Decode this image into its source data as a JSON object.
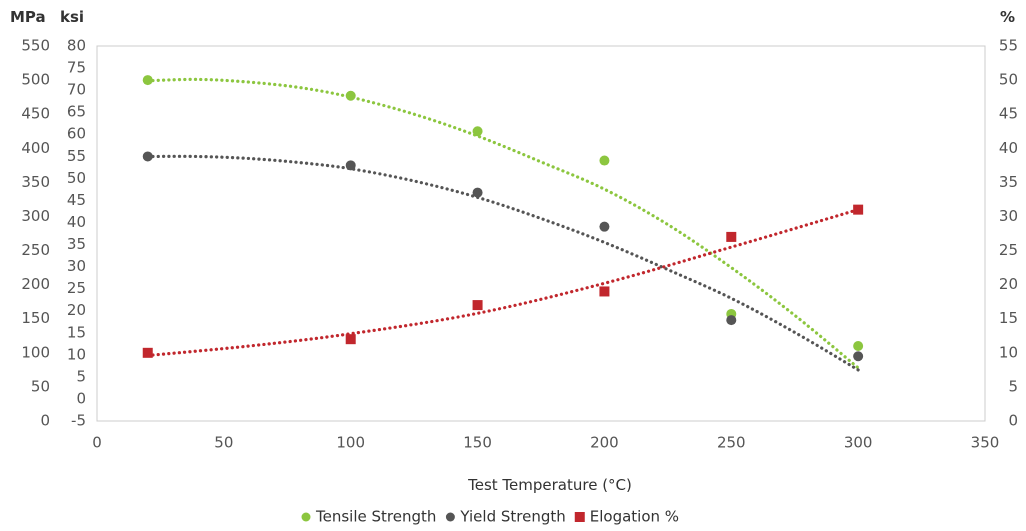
{
  "chart_data": {
    "type": "scatter",
    "title": "",
    "xlabel": "Test Temperature  (°C)",
    "x_ticks": [
      0,
      50,
      100,
      150,
      200,
      250,
      300,
      350
    ],
    "xlim": [
      0,
      350
    ],
    "y_left_mpa": {
      "unit": "MPa",
      "ticks": [
        0,
        50,
        100,
        150,
        200,
        250,
        300,
        350,
        400,
        450,
        500,
        550
      ],
      "ylim": [
        0,
        550
      ]
    },
    "y_left_ksi": {
      "unit": "ksi",
      "ticks": [
        -5,
        0,
        5,
        10,
        15,
        20,
        25,
        30,
        35,
        40,
        45,
        50,
        55,
        60,
        65,
        70,
        75,
        80
      ],
      "ylim": [
        -5,
        80
      ]
    },
    "y_right_percent": {
      "unit": "%",
      "ticks": [
        0,
        5,
        10,
        15,
        20,
        25,
        30,
        35,
        40,
        45,
        50,
        55
      ],
      "ylim": [
        0,
        55
      ]
    },
    "grid": false,
    "legend_position": "bottom",
    "series": [
      {
        "name": "Tensile Strength",
        "axis": "MPa",
        "marker": "circle",
        "color": "#8cc63f",
        "x": [
          20,
          100,
          150,
          200,
          250,
          300
        ],
        "y": [
          500,
          477,
          425,
          382,
          157,
          110
        ],
        "trend": [
          [
            20,
            499
          ],
          [
            40,
            501
          ],
          [
            60,
            497
          ],
          [
            80,
            489
          ],
          [
            100,
            475
          ],
          [
            125,
            450
          ],
          [
            150,
            418
          ],
          [
            175,
            380
          ],
          [
            200,
            340
          ],
          [
            225,
            288
          ],
          [
            250,
            225
          ],
          [
            275,
            155
          ],
          [
            300,
            78
          ]
        ]
      },
      {
        "name": "Yield Strength",
        "axis": "MPa",
        "marker": "circle",
        "color": "#555555",
        "x": [
          20,
          100,
          150,
          200,
          250,
          300
        ],
        "y": [
          388,
          375,
          335,
          285,
          148,
          95
        ],
        "trend": [
          [
            20,
            388
          ],
          [
            40,
            388
          ],
          [
            60,
            385
          ],
          [
            80,
            379
          ],
          [
            100,
            370
          ],
          [
            125,
            352
          ],
          [
            150,
            328
          ],
          [
            175,
            297
          ],
          [
            200,
            262
          ],
          [
            225,
            222
          ],
          [
            250,
            180
          ],
          [
            275,
            130
          ],
          [
            300,
            75
          ]
        ]
      },
      {
        "name": "Elogation %",
        "axis": "%",
        "marker": "square",
        "color": "#c1272d",
        "x": [
          20,
          100,
          150,
          200,
          250,
          300
        ],
        "y": [
          10,
          12,
          17,
          19,
          27,
          31
        ],
        "trend": [
          [
            20,
            9.6
          ],
          [
            60,
            11
          ],
          [
            100,
            12.8
          ],
          [
            150,
            15.8
          ],
          [
            200,
            20.2
          ],
          [
            250,
            25.5
          ],
          [
            300,
            31
          ]
        ]
      }
    ]
  }
}
